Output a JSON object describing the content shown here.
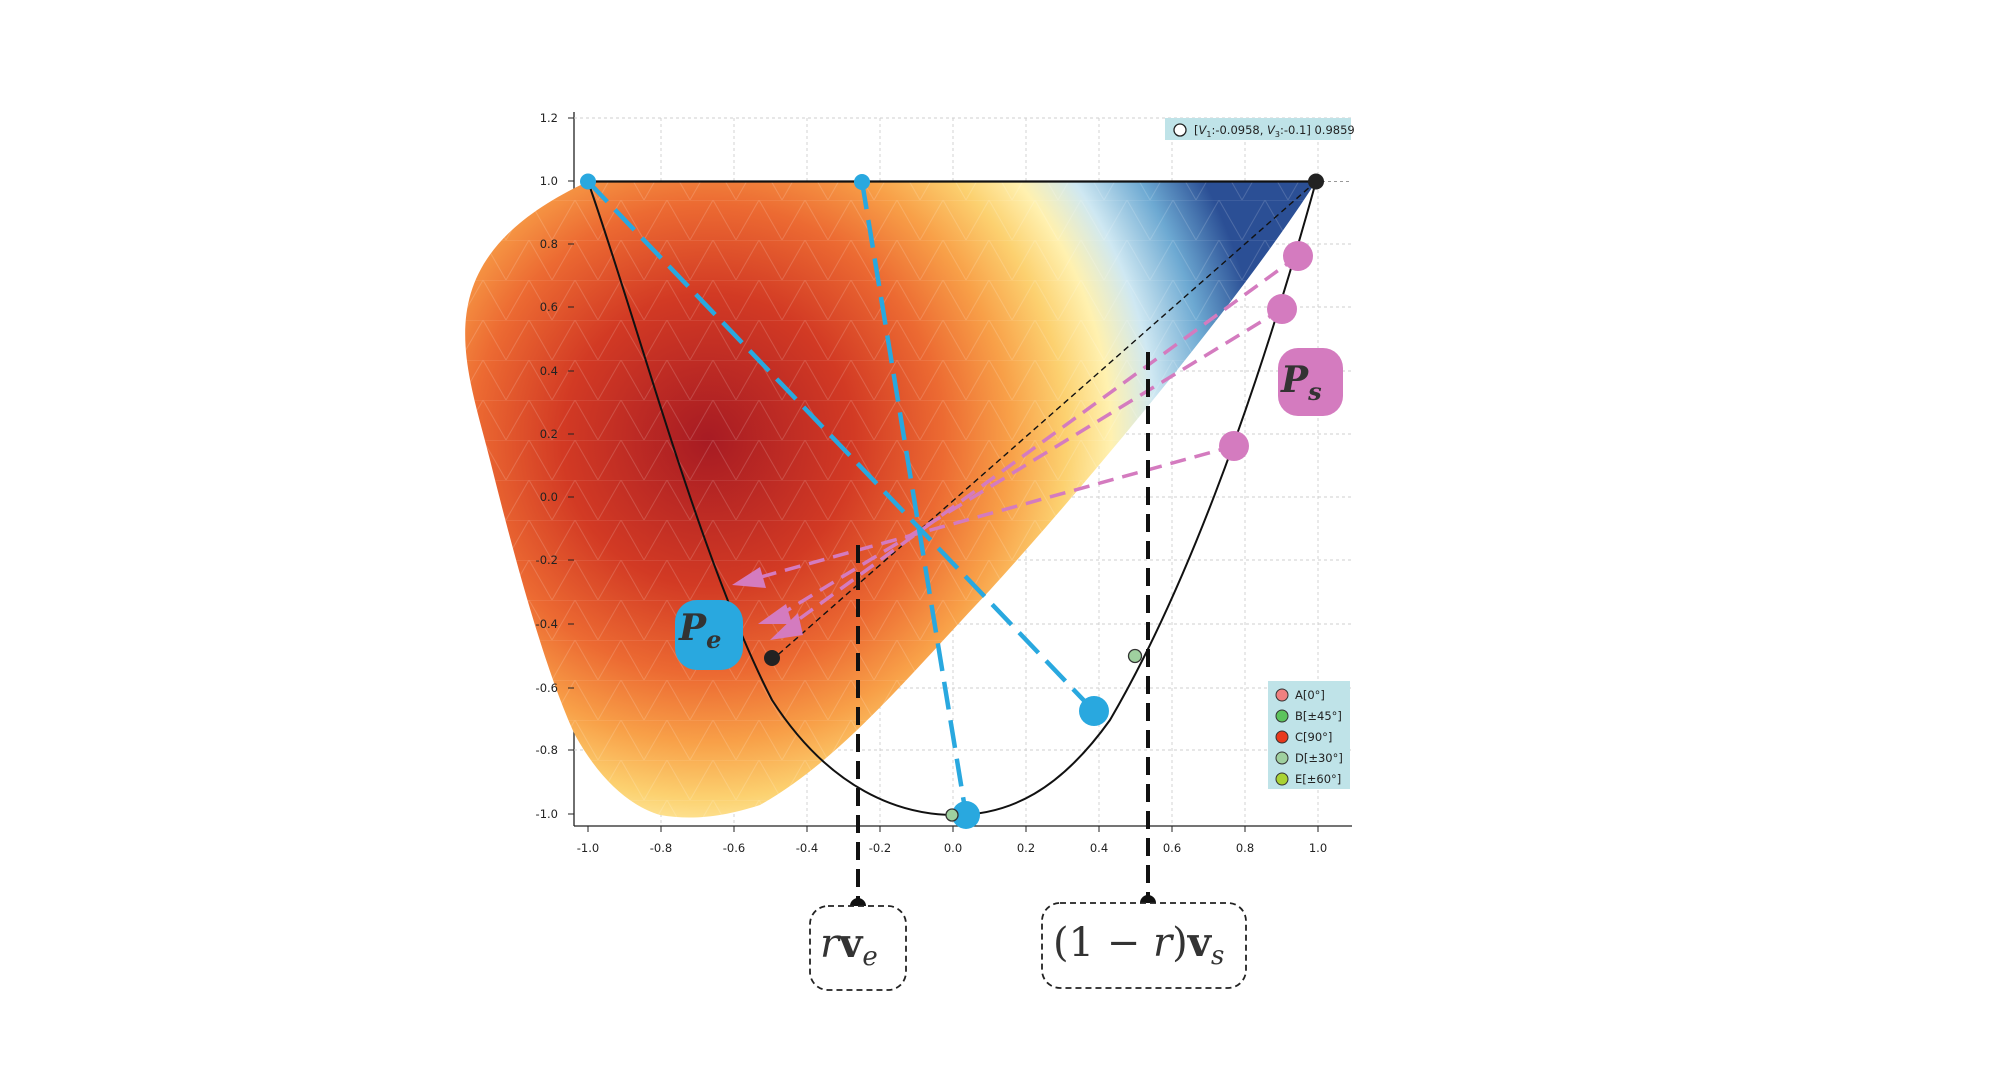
{
  "info_box": {
    "text_prefix": "[",
    "v1_var": "V",
    "v1_sub": "1",
    "v1_val": ":-0.0958, ",
    "v3_var": "V",
    "v3_sub": "3",
    "v3_val": ":-0.1] 0.9859"
  },
  "axes": {
    "x_ticks": [
      "-1.0",
      "-0.8",
      "-0.6",
      "-0.4",
      "-0.2",
      "0.0",
      "0.2",
      "0.4",
      "0.6",
      "0.8",
      "1.0"
    ],
    "y_ticks": [
      "1.2",
      "1.0",
      "0.8",
      "0.6",
      "0.4",
      "0.2",
      "0.0",
      "-0.2",
      "-0.4",
      "-0.6",
      "-0.8",
      "-1.0"
    ],
    "x_range": [
      -1.0,
      1.0
    ],
    "y_range": [
      -1.0,
      1.2
    ],
    "grid": true
  },
  "legend": {
    "placement": "bottom-right",
    "items": [
      {
        "text": "A[0°]",
        "color": "#f08080"
      },
      {
        "text": "B[±45°]",
        "color": "#5cc35c"
      },
      {
        "text": "C[90°]",
        "color": "#e8391c"
      },
      {
        "text": "D[±30°]",
        "color": "#9fd09f"
      },
      {
        "text": "E[±60°]",
        "color": "#a9d233"
      }
    ]
  },
  "labels": {
    "p_s": {
      "letter": "P",
      "sub": "s"
    },
    "p_e": {
      "letter": "P",
      "sub": "e"
    },
    "r_ve": {
      "r": "r",
      "v": "v",
      "sub": "e"
    },
    "one_minus_r_vs": {
      "open": "(1 − ",
      "r": "r",
      "close": ")",
      "v": "v",
      "sub": "s"
    }
  },
  "colors": {
    "blue": "#29a8df",
    "pink": "#d47bbf",
    "dark": "#222222",
    "info_bg": "#bfe3e8",
    "legend_bg": "#bfe3e8"
  }
}
